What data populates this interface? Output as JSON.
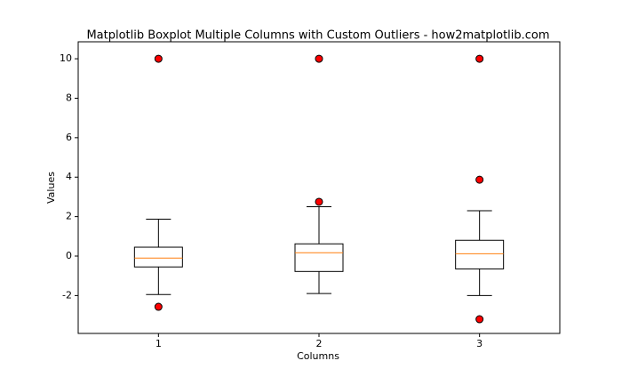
{
  "chart_data": {
    "type": "box",
    "title": "Matplotlib Boxplot Multiple Columns with Custom Outliers - how2matplotlib.com",
    "x_label": "Columns",
    "y_label": "Values",
    "categories": [
      "1",
      "2",
      "3"
    ],
    "boxes": [
      {
        "whislo": -1.95,
        "q1": -0.55,
        "med": -0.1,
        "q3": 0.45,
        "whishi": 1.87,
        "fliers": [
          10,
          -2.57
        ]
      },
      {
        "whislo": -1.9,
        "q1": -0.78,
        "med": 0.17,
        "q3": 0.62,
        "whishi": 2.5,
        "fliers": [
          10,
          2.75
        ]
      },
      {
        "whislo": -2.0,
        "q1": -0.65,
        "med": 0.12,
        "q3": 0.8,
        "whishi": 2.3,
        "fliers": [
          10,
          3.87,
          -3.2
        ]
      }
    ],
    "box_color": "#000000",
    "median_color": "#ff7f0e",
    "flier_color": "#ff0000",
    "xlim": [
      0.5,
      3.5
    ],
    "ylim": [
      -3.92,
      10.86
    ],
    "yticks": [
      -2,
      0,
      2,
      4,
      6,
      8,
      10
    ]
  }
}
